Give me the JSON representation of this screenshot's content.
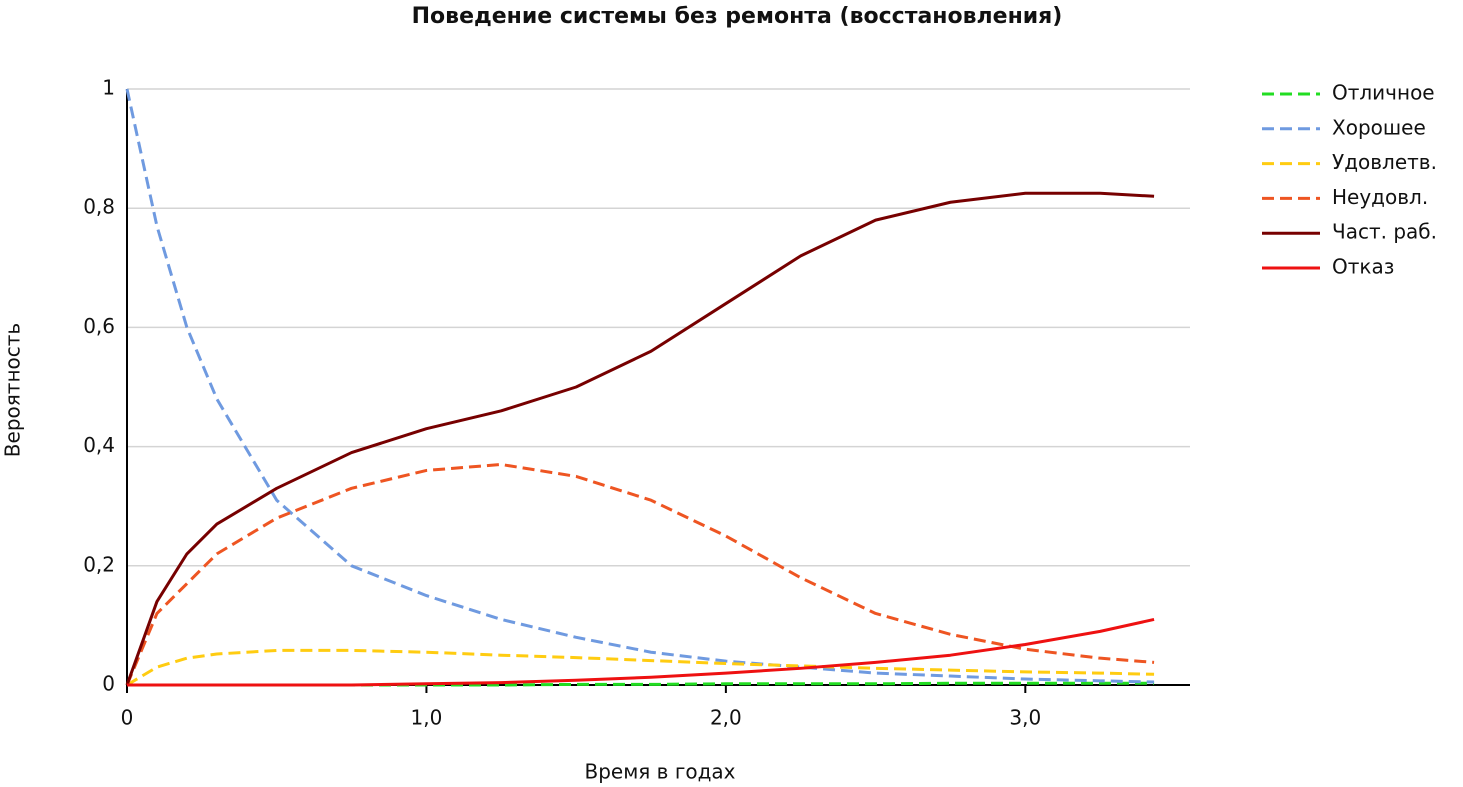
{
  "chart_data": {
    "type": "line",
    "title": "Поведение системы без ремонта (восстановления)",
    "x_label": "Время в годах",
    "y_label": "Вероятность",
    "x": [
      0,
      0.1,
      0.2,
      0.3,
      0.5,
      0.75,
      1.0,
      1.25,
      1.5,
      1.75,
      2.0,
      2.25,
      2.5,
      2.75,
      3.0,
      3.25,
      3.43
    ],
    "series": [
      {
        "name": "Отличное",
        "color": "#22dd22",
        "dashed": true,
        "values": [
          0,
          0,
          0,
          0,
          0,
          0,
          0,
          0,
          0.001,
          0.001,
          0.002,
          0.002,
          0.002,
          0.003,
          0.003,
          0.003,
          0.003
        ]
      },
      {
        "name": "Хорошее",
        "color": "#6f9ae0",
        "dashed": true,
        "values": [
          1,
          0.77,
          0.6,
          0.48,
          0.31,
          0.2,
          0.15,
          0.11,
          0.08,
          0.055,
          0.04,
          0.03,
          0.02,
          0.015,
          0.01,
          0.007,
          0.005
        ]
      },
      {
        "name": "Удовлетв.",
        "color": "#ffcc11",
        "dashed": true,
        "values": [
          0,
          0.03,
          0.045,
          0.052,
          0.058,
          0.058,
          0.055,
          0.05,
          0.046,
          0.041,
          0.036,
          0.032,
          0.028,
          0.025,
          0.022,
          0.02,
          0.018
        ]
      },
      {
        "name": "Неудовл.",
        "color": "#ee5522",
        "dashed": true,
        "values": [
          0,
          0.12,
          0.17,
          0.22,
          0.28,
          0.33,
          0.36,
          0.37,
          0.35,
          0.31,
          0.25,
          0.18,
          0.12,
          0.085,
          0.06,
          0.045,
          0.038
        ]
      },
      {
        "name": "Част. раб.",
        "color": "#770000",
        "dashed": false,
        "values": [
          0,
          0.14,
          0.22,
          0.27,
          0.33,
          0.39,
          0.43,
          0.46,
          0.5,
          0.56,
          0.64,
          0.72,
          0.78,
          0.81,
          0.825,
          0.825,
          0.82
        ]
      },
      {
        "name": "Отказ",
        "color": "#ee1111",
        "dashed": false,
        "values": [
          0,
          0,
          0,
          0,
          0,
          0,
          0.002,
          0.004,
          0.008,
          0.013,
          0.02,
          0.028,
          0.038,
          0.05,
          0.068,
          0.09,
          0.11
        ]
      }
    ],
    "xlim": [
      0,
      3.55
    ],
    "ylim": [
      0,
      1
    ],
    "xticks": [
      0,
      {
        "value": 1,
        "label": "1,0"
      },
      {
        "value": 2,
        "label": "2,0"
      },
      {
        "value": 3,
        "label": "3,0"
      }
    ],
    "yticks": [
      0,
      {
        "value": 0.2,
        "label": "0,2"
      },
      {
        "value": 0.4,
        "label": "0,4"
      },
      {
        "value": 0.6,
        "label": "0,6"
      },
      {
        "value": 0.8,
        "label": "0,8"
      },
      1
    ],
    "grid": true,
    "legend": "right"
  }
}
